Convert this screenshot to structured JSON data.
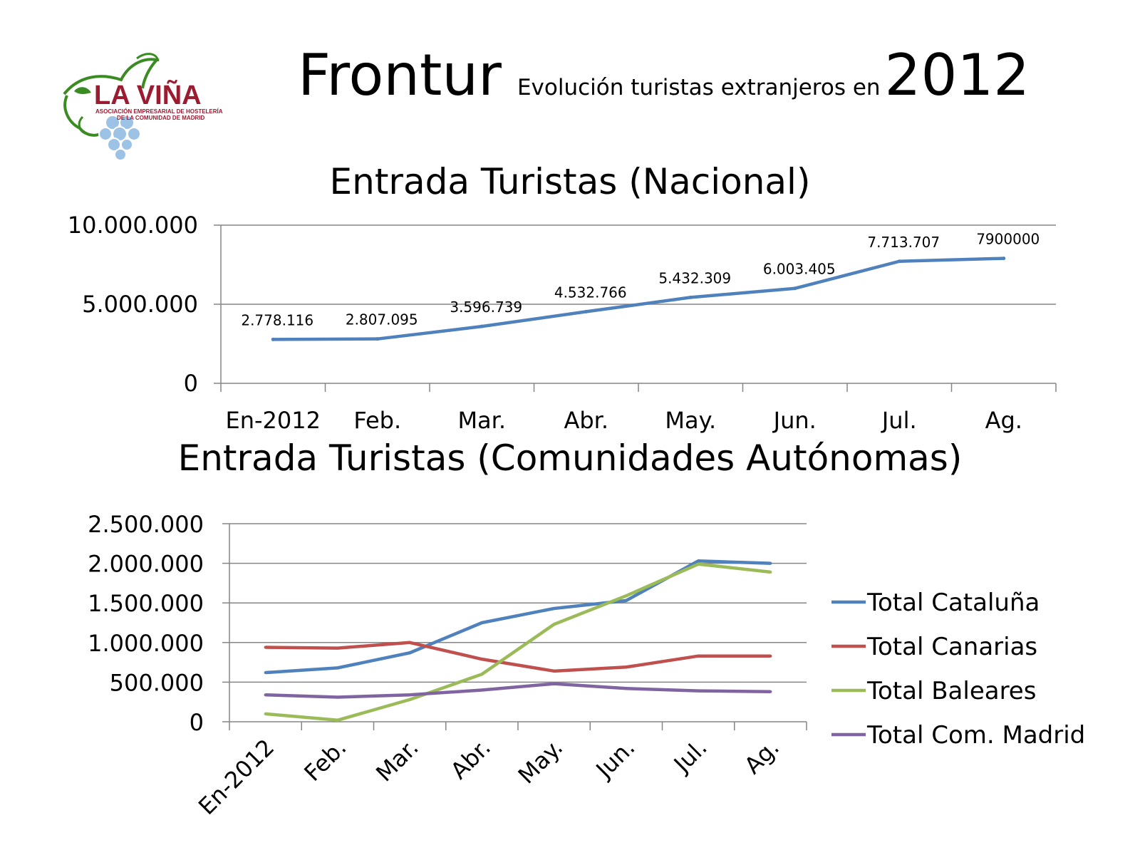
{
  "header": {
    "logo": {
      "name": "LA VIÑA",
      "line1": "ASOCIACIÓN EMPRESARIAL DE HOSTELERÍA",
      "line2": "DE LA COMUNIDAD DE MADRID"
    },
    "title": "Frontur",
    "subtitle": "Evolución turistas extranjeros en",
    "year": "2012"
  },
  "chart_data": [
    {
      "type": "line",
      "title": "Entrada Turistas (Nacional)",
      "categories": [
        "En-2012",
        "Feb.",
        "Mar.",
        "Abr.",
        "May.",
        "Jun.",
        "Jul.",
        "Ag."
      ],
      "series": [
        {
          "values": [
            2778116,
            2807095,
            3596739,
            4532766,
            5432309,
            6003405,
            7713707,
            7900000
          ],
          "labels": [
            "2.778.116",
            "2.807.095",
            "3.596.739",
            "4.532.766",
            "5.432.309",
            "6.003.405",
            "7.713.707",
            "7900000"
          ],
          "color": "#4F81BD"
        }
      ],
      "ylim": [
        0,
        10000000
      ],
      "yticks": [
        0,
        5000000,
        10000000
      ],
      "ytick_labels": [
        "0",
        "5.000.000",
        "10.000.000"
      ],
      "grid": true,
      "legend": "none"
    },
    {
      "type": "line",
      "title": "Entrada Turistas (Comunidades Autónomas)",
      "categories": [
        "En-2012",
        "Feb.",
        "Mar.",
        "Abr.",
        "May.",
        "Jun.",
        "Jul.",
        "Ag."
      ],
      "series": [
        {
          "name": "Total Cataluña",
          "color": "#4F81BD",
          "values": [
            620000,
            680000,
            870000,
            1250000,
            1430000,
            1530000,
            2030000,
            2000000
          ]
        },
        {
          "name": "Total Canarias",
          "color": "#C0504D",
          "values": [
            940000,
            930000,
            1000000,
            790000,
            640000,
            690000,
            830000,
            830000
          ]
        },
        {
          "name": "Total Baleares",
          "color": "#9BBB59",
          "values": [
            100000,
            20000,
            280000,
            600000,
            1230000,
            1590000,
            1990000,
            1890000
          ]
        },
        {
          "name": "Total Com. Madrid",
          "color": "#8064A2",
          "values": [
            340000,
            310000,
            340000,
            400000,
            480000,
            420000,
            390000,
            380000
          ]
        }
      ],
      "ylim": [
        0,
        2500000
      ],
      "yticks": [
        0,
        500000,
        1000000,
        1500000,
        2000000,
        2500000
      ],
      "ytick_labels": [
        "0",
        "500.000",
        "1.000.000",
        "1.500.000",
        "2.000.000",
        "2.500.000"
      ],
      "grid": true,
      "legend": "right"
    }
  ],
  "colors": {
    "logo_red": "#9B1B30",
    "logo_green": "#3A8B22",
    "logo_grape": "#9CC3E6",
    "axis": "#868686",
    "grid": "#868686"
  }
}
